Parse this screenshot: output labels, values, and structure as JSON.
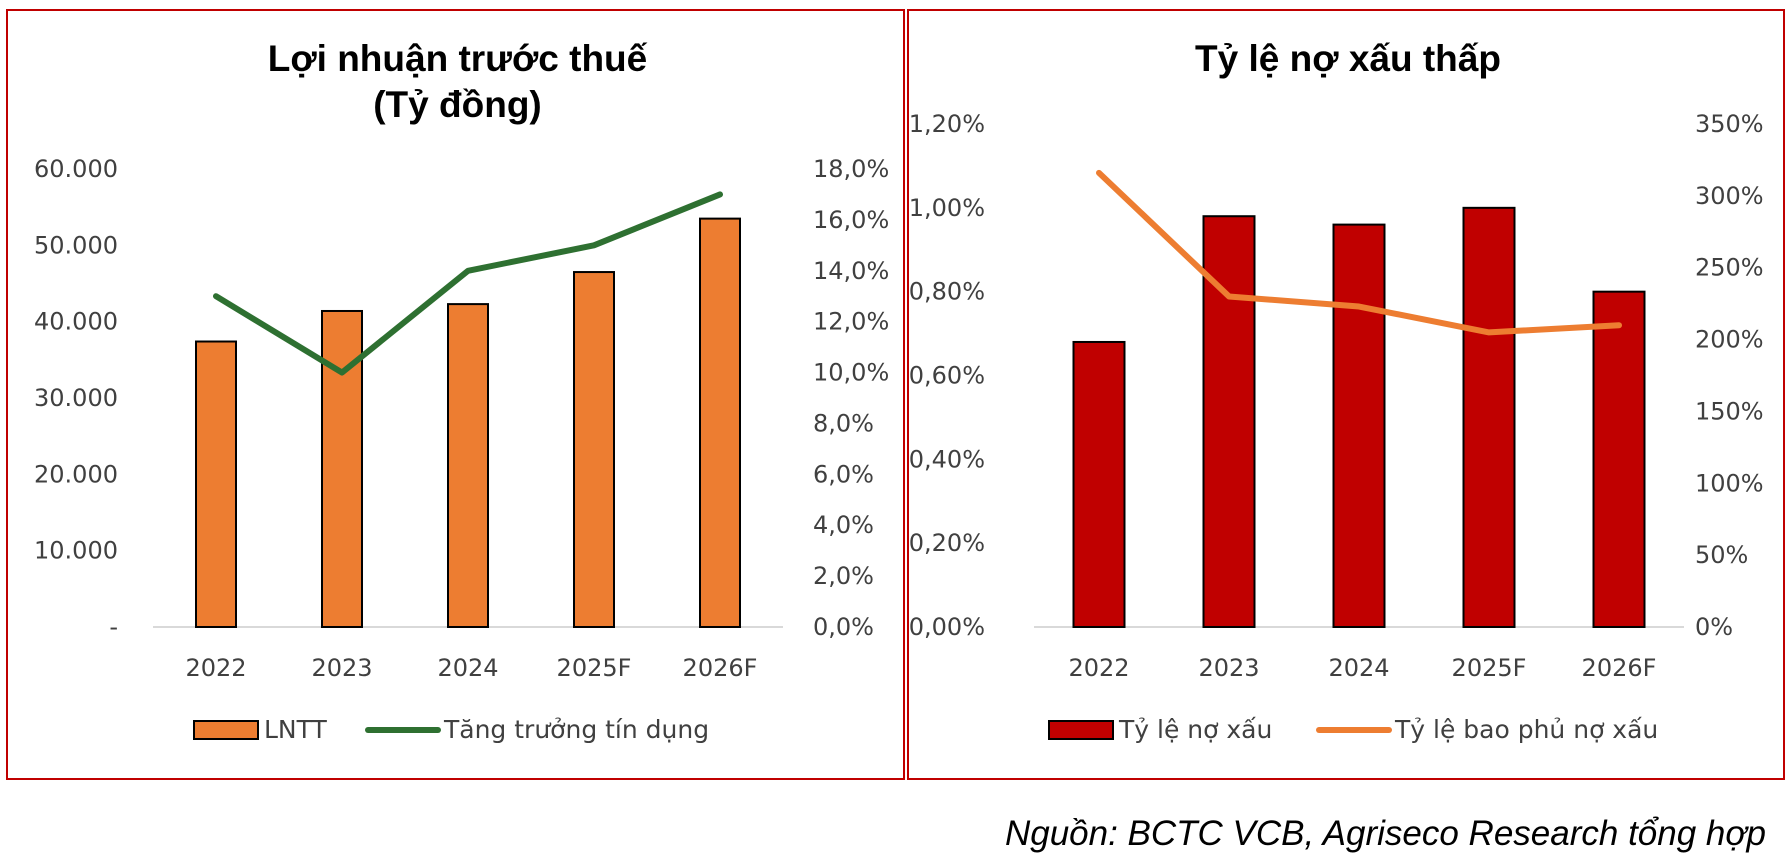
{
  "chart_data": [
    {
      "type": "bar+line",
      "title_lines": [
        "Lợi nhuận trước thuế",
        "(Tỷ đồng)"
      ],
      "categories": [
        "2022",
        "2023",
        "2024",
        "2025F",
        "2026F"
      ],
      "y_left": {
        "ticks": [
          "-",
          "10.000",
          "20.000",
          "30.000",
          "40.000",
          "50.000",
          "60.000"
        ],
        "range": [
          0,
          60000
        ]
      },
      "y_right": {
        "ticks": [
          "0,0%",
          "2,0%",
          "4,0%",
          "6,0%",
          "8,0%",
          "10,0%",
          "12,0%",
          "14,0%",
          "16,0%",
          "18,0%"
        ],
        "range": [
          0,
          18
        ]
      },
      "series": [
        {
          "name": "LNTT",
          "type": "bar",
          "axis": "left",
          "values": [
            37400,
            41400,
            42300,
            46500,
            53500
          ]
        },
        {
          "name": "Tăng trưởng tín dụng",
          "type": "line",
          "axis": "right",
          "values": [
            13.0,
            10.0,
            14.0,
            15.0,
            17.0
          ]
        }
      ],
      "colors": {
        "bar": "#ed7d31",
        "line": "#2e7031",
        "axis": "#d9d9d9"
      },
      "legend": [
        "LNTT",
        "Tăng trưởng tín dụng"
      ]
    },
    {
      "type": "bar+line",
      "title_lines": [
        "Tỷ lệ nợ xấu thấp"
      ],
      "categories": [
        "2022",
        "2023",
        "2024",
        "2025F",
        "2026F"
      ],
      "y_left": {
        "ticks": [
          "0,00%",
          "0,20%",
          "0,40%",
          "0,60%",
          "0,80%",
          "1,00%",
          "1,20%"
        ],
        "range": [
          0,
          1.2
        ]
      },
      "y_right": {
        "ticks": [
          "0%",
          "50%",
          "100%",
          "150%",
          "200%",
          "250%",
          "300%",
          "350%"
        ],
        "range": [
          0,
          350
        ]
      },
      "series": [
        {
          "name": "Tỷ lệ nợ xấu",
          "type": "bar",
          "axis": "left",
          "values": [
            0.68,
            0.98,
            0.96,
            1.0,
            0.8
          ]
        },
        {
          "name": "Tỷ lệ bao phủ nợ xấu",
          "type": "line",
          "axis": "right",
          "values": [
            316,
            230,
            223,
            205,
            210
          ]
        }
      ],
      "colors": {
        "bar": "#c00000",
        "line": "#ed7d31",
        "axis": "#d9d9d9"
      },
      "legend": [
        "Tỷ lệ nợ xấu",
        "Tỷ lệ bao phủ nợ xấu"
      ]
    }
  ],
  "source_note": "Nguồn: BCTC VCB, Agriseco Research tổng hợp"
}
